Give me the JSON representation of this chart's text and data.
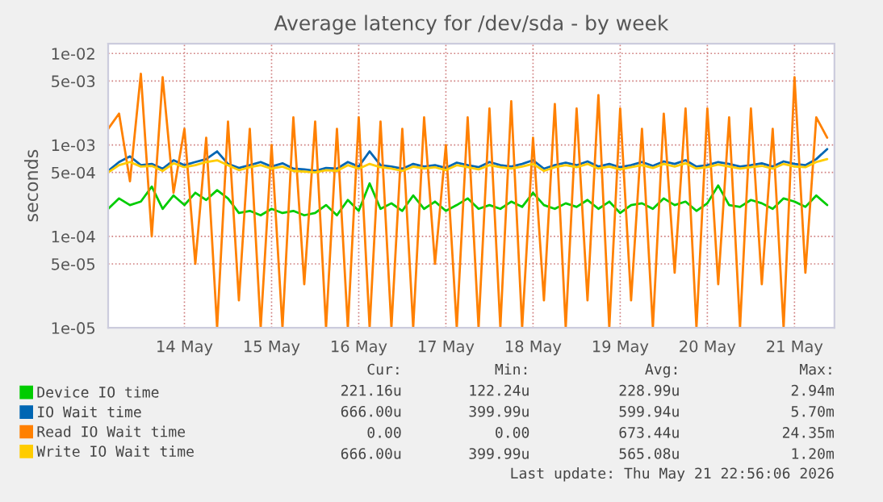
{
  "chart_data": {
    "type": "line",
    "title": "Average latency for /dev/sda - by week",
    "ylabel": "seconds",
    "x": [
      "2026-05-13T15:00",
      "2026-05-13T18:00",
      "2026-05-13T21:00",
      "2026-05-14T00:00",
      "2026-05-14T03:00",
      "2026-05-14T06:00",
      "2026-05-14T09:00",
      "2026-05-14T12:00",
      "2026-05-14T15:00",
      "2026-05-14T18:00",
      "2026-05-14T21:00",
      "2026-05-15T00:00",
      "2026-05-15T03:00",
      "2026-05-15T06:00",
      "2026-05-15T09:00",
      "2026-05-15T12:00",
      "2026-05-15T15:00",
      "2026-05-15T18:00",
      "2026-05-15T21:00",
      "2026-05-16T00:00",
      "2026-05-16T03:00",
      "2026-05-16T06:00",
      "2026-05-16T09:00",
      "2026-05-16T12:00",
      "2026-05-16T15:00",
      "2026-05-16T18:00",
      "2026-05-16T21:00",
      "2026-05-17T00:00",
      "2026-05-17T03:00",
      "2026-05-17T06:00",
      "2026-05-17T09:00",
      "2026-05-17T12:00",
      "2026-05-17T15:00",
      "2026-05-17T18:00",
      "2026-05-17T21:00",
      "2026-05-18T00:00",
      "2026-05-18T03:00",
      "2026-05-18T06:00",
      "2026-05-18T09:00",
      "2026-05-18T12:00",
      "2026-05-18T15:00",
      "2026-05-18T18:00",
      "2026-05-18T21:00",
      "2026-05-19T00:00",
      "2026-05-19T03:00",
      "2026-05-19T06:00",
      "2026-05-19T09:00",
      "2026-05-19T12:00",
      "2026-05-19T15:00",
      "2026-05-19T18:00",
      "2026-05-19T21:00",
      "2026-05-20T00:00",
      "2026-05-20T03:00",
      "2026-05-20T06:00",
      "2026-05-20T09:00",
      "2026-05-20T12:00",
      "2026-05-20T15:00",
      "2026-05-20T18:00",
      "2026-05-20T21:00",
      "2026-05-21T00:00",
      "2026-05-21T03:00",
      "2026-05-21T06:00",
      "2026-05-21T09:00",
      "2026-05-21T12:00",
      "2026-05-21T15:00",
      "2026-05-21T18:00",
      "2026-05-21T21:00"
    ],
    "series": [
      {
        "name": "Device IO time",
        "color": "#00cc00",
        "values": [
          0.0002,
          0.00026,
          0.00022,
          0.00024,
          0.00035,
          0.0002,
          0.00028,
          0.00022,
          0.0003,
          0.00025,
          0.00032,
          0.00026,
          0.00018,
          0.00019,
          0.00017,
          0.0002,
          0.00018,
          0.00019,
          0.00017,
          0.00018,
          0.00022,
          0.00017,
          0.00025,
          0.00019,
          0.00038,
          0.0002,
          0.00023,
          0.00019,
          0.00028,
          0.0002,
          0.00024,
          0.00019,
          0.00022,
          0.00026,
          0.0002,
          0.00022,
          0.0002,
          0.00024,
          0.00021,
          0.0003,
          0.00022,
          0.0002,
          0.00023,
          0.00021,
          0.00025,
          0.0002,
          0.00024,
          0.00018,
          0.00022,
          0.00023,
          0.0002,
          0.00026,
          0.00022,
          0.00024,
          0.00019,
          0.00023,
          0.00036,
          0.00022,
          0.00021,
          0.00025,
          0.00023,
          0.0002,
          0.00026,
          0.00024,
          0.00021,
          0.00028,
          0.00022
        ]
      },
      {
        "name": "IO Wait time",
        "color": "#0066b3",
        "values": [
          0.00052,
          0.00065,
          0.00075,
          0.0006,
          0.00062,
          0.00055,
          0.00068,
          0.0006,
          0.00065,
          0.0007,
          0.00085,
          0.00062,
          0.00056,
          0.0006,
          0.00065,
          0.00058,
          0.00063,
          0.00055,
          0.00054,
          0.00052,
          0.00056,
          0.00055,
          0.00065,
          0.00058,
          0.00085,
          0.0006,
          0.00058,
          0.00055,
          0.00062,
          0.00058,
          0.0006,
          0.00056,
          0.00064,
          0.0006,
          0.00057,
          0.00065,
          0.0006,
          0.00058,
          0.00062,
          0.00068,
          0.00055,
          0.0006,
          0.00064,
          0.0006,
          0.00066,
          0.00058,
          0.00062,
          0.00057,
          0.0006,
          0.00065,
          0.00059,
          0.00066,
          0.00062,
          0.00068,
          0.00058,
          0.0006,
          0.00065,
          0.00062,
          0.00058,
          0.0006,
          0.00063,
          0.00058,
          0.00066,
          0.00062,
          0.0006,
          0.0007,
          0.0009
        ]
      },
      {
        "name": "Read IO Wait time",
        "color": "#ff8000",
        "values": [
          0.0015,
          0.0022,
          0.0004,
          0.006,
          0.0001,
          0.0055,
          0.0003,
          0.0015,
          5e-05,
          0.0012,
          1e-05,
          0.0018,
          2e-05,
          0.0015,
          1e-05,
          0.001,
          1e-05,
          0.002,
          3e-05,
          0.0018,
          1e-05,
          0.0015,
          1e-05,
          0.002,
          1e-05,
          0.0018,
          1e-05,
          0.0015,
          1e-05,
          0.002,
          5e-05,
          0.001,
          1e-05,
          0.002,
          1e-05,
          0.0025,
          1e-05,
          0.003,
          1e-05,
          0.0012,
          2e-05,
          0.0028,
          1e-05,
          0.0025,
          2e-05,
          0.0035,
          1e-05,
          0.0025,
          2e-05,
          0.0015,
          1e-05,
          0.0022,
          4e-05,
          0.0025,
          1e-05,
          0.0025,
          3e-05,
          0.002,
          1e-05,
          0.0025,
          3e-05,
          0.0015,
          1e-05,
          0.0055,
          4e-05,
          0.002,
          0.0012
        ]
      },
      {
        "name": "Write IO Wait time",
        "color": "#ffcc00",
        "values": [
          0.0005,
          0.0006,
          0.00065,
          0.00058,
          0.00059,
          0.00052,
          0.00063,
          0.00057,
          0.0006,
          0.00065,
          0.00068,
          0.0006,
          0.00053,
          0.00057,
          0.0006,
          0.00055,
          0.00058,
          0.00052,
          0.00051,
          0.0005,
          0.00053,
          0.00052,
          0.0006,
          0.00055,
          0.00062,
          0.00057,
          0.00055,
          0.00052,
          0.00058,
          0.00055,
          0.00057,
          0.00053,
          0.0006,
          0.00057,
          0.00054,
          0.0006,
          0.00057,
          0.00055,
          0.00058,
          0.00062,
          0.00052,
          0.00057,
          0.0006,
          0.00057,
          0.00062,
          0.00055,
          0.00058,
          0.00054,
          0.00057,
          0.0006,
          0.00056,
          0.00062,
          0.00058,
          0.00063,
          0.00055,
          0.00057,
          0.00061,
          0.00058,
          0.00055,
          0.00057,
          0.00059,
          0.00055,
          0.00062,
          0.00058,
          0.00057,
          0.00065,
          0.0007
        ]
      }
    ],
    "log": "y",
    "ylim": [
      1e-05,
      0.0128
    ],
    "yticks": [
      {
        "value": 1e-05,
        "label": "1e-05"
      },
      {
        "value": 5e-05,
        "label": "5e-05"
      },
      {
        "value": 0.0001,
        "label": "1e-04"
      },
      {
        "value": 0.0005,
        "label": "5e-04"
      },
      {
        "value": 0.001,
        "label": "1e-03"
      },
      {
        "value": 0.005,
        "label": "5e-03"
      },
      {
        "value": 0.01,
        "label": "1e-02"
      }
    ],
    "xlim": [
      "2026-05-13T15:00",
      "2026-05-21T23:00"
    ],
    "xticks": [
      {
        "value": "2026-05-14T12:00",
        "label": "14 May"
      },
      {
        "value": "2026-05-15T12:00",
        "label": "15 May"
      },
      {
        "value": "2026-05-16T12:00",
        "label": "16 May"
      },
      {
        "value": "2026-05-17T12:00",
        "label": "17 May"
      },
      {
        "value": "2026-05-18T12:00",
        "label": "18 May"
      },
      {
        "value": "2026-05-19T12:00",
        "label": "19 May"
      },
      {
        "value": "2026-05-20T12:00",
        "label": "20 May"
      },
      {
        "value": "2026-05-21T12:00",
        "label": "21 May"
      }
    ],
    "grid": true,
    "legend": "bottom",
    "marker": "none",
    "line_style": "solid",
    "annotations": [
      "Cur:",
      "Min:",
      "Avg:",
      "Max:",
      "221.16u",
      "122.24u",
      "228.99u",
      "2.94m",
      "666.00u",
      "399.99u",
      "599.94u",
      "5.70m",
      "0.00",
      "0.00",
      "673.44u",
      "24.35m",
      "666.00u",
      "399.99u",
      "565.08u",
      "1.20m",
      "Last update: Thu May 21 22:56:06 2026"
    ]
  }
}
